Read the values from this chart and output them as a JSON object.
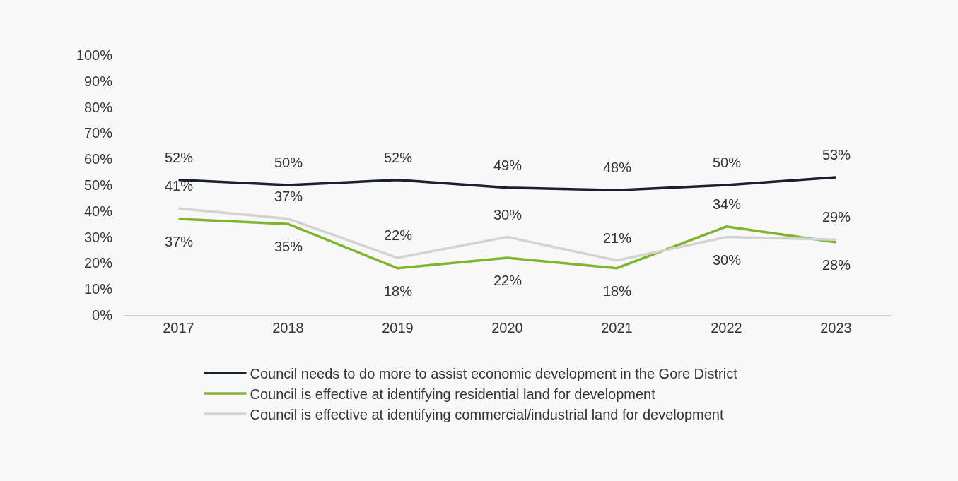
{
  "chart_data": {
    "type": "line",
    "categories": [
      "2017",
      "2018",
      "2019",
      "2020",
      "2021",
      "2022",
      "2023"
    ],
    "series": [
      {
        "name": "Council needs to do more to assist economic development in the Gore District",
        "color": "#1b2030",
        "values": [
          52,
          50,
          52,
          49,
          48,
          50,
          53
        ],
        "value_labels": [
          "52%",
          "50%",
          "52%",
          "49%",
          "48%",
          "50%",
          "53%"
        ]
      },
      {
        "name": "Council is effective at identifying residential land for development",
        "color": "#7db52f",
        "values": [
          37,
          35,
          18,
          22,
          18,
          34,
          28
        ],
        "value_labels": [
          "37%",
          "35%",
          "18%",
          "22%",
          "18%",
          "34%",
          "28%"
        ]
      },
      {
        "name": "Council is effective at identifying commercial/industrial land for development",
        "color": "#d3d3d3",
        "values": [
          41,
          37,
          22,
          30,
          21,
          30,
          29
        ],
        "value_labels": [
          "41%",
          "37%",
          "22%",
          "30%",
          "21%",
          "30%",
          "29%"
        ]
      }
    ],
    "ylim": [
      0,
      100
    ],
    "yticks": [
      {
        "value": 0,
        "label": "0%"
      },
      {
        "value": 10,
        "label": "10%"
      },
      {
        "value": 20,
        "label": "20%"
      },
      {
        "value": 30,
        "label": "30%"
      },
      {
        "value": 40,
        "label": "40%"
      },
      {
        "value": 50,
        "label": "50%"
      },
      {
        "value": 60,
        "label": "60%"
      },
      {
        "value": 70,
        "label": "70%"
      },
      {
        "value": 80,
        "label": "80%"
      },
      {
        "value": 90,
        "label": "90%"
      },
      {
        "value": 100,
        "label": "100%"
      }
    ],
    "grid": false,
    "legend": "bottom",
    "marker": "none",
    "line_style": "solid"
  }
}
